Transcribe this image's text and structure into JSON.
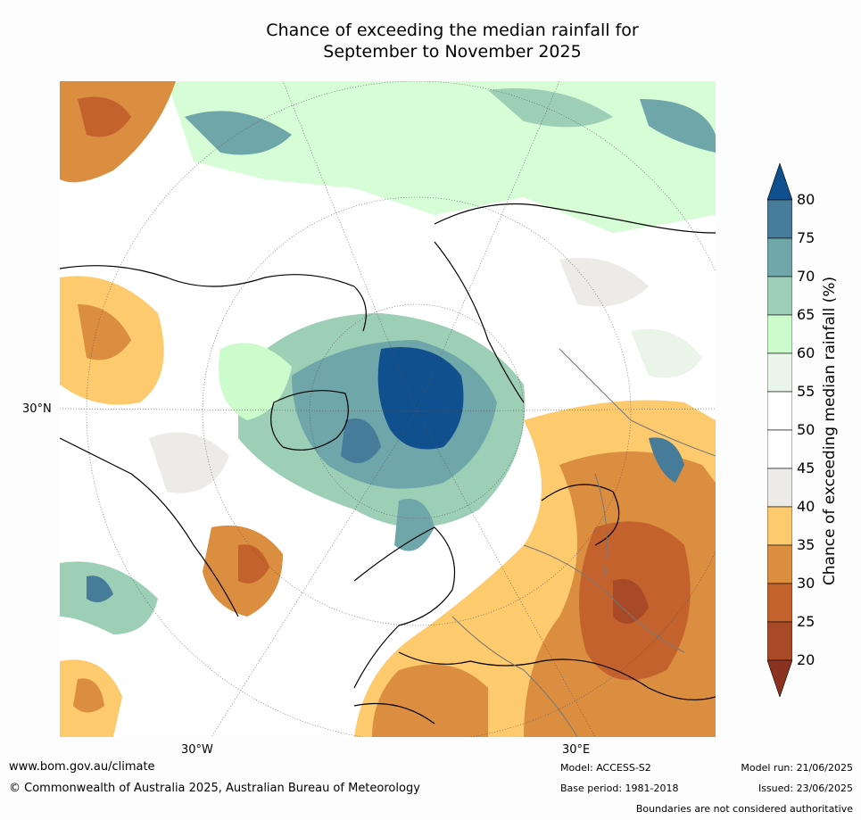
{
  "title_line1": "Chance of exceeding the median rainfall for",
  "title_line2": "September to November 2025",
  "map": {
    "lat_label": "30°N",
    "lon_labels": [
      "30°W",
      "30°E"
    ]
  },
  "colorbar": {
    "label": "Chance of exceeding median rainfall (%)",
    "ticks": [
      "80",
      "75",
      "70",
      "65",
      "60",
      "55",
      "50",
      "45",
      "40",
      "35",
      "30",
      "25",
      "20"
    ],
    "colors": [
      "#11508f",
      "#467b99",
      "#6fa6aa",
      "#9dcfb7",
      "#ccfccc",
      "#e8f5e8",
      "#ffffff",
      "#ffffff",
      "#ecebe7",
      "#fdca6d",
      "#db8d40",
      "#c4622d",
      "#a84a28",
      "#8b3320"
    ]
  },
  "footer": {
    "url": "www.bom.gov.au/climate",
    "copyright": "© Commonwealth of Australia 2025, Australian Bureau of Meteorology",
    "model": "Model: ACCESS-S2",
    "base_period": "Base period: 1981-2018",
    "model_run": "Model run: 21/06/2025",
    "issued": "Issued: 23/06/2025",
    "disclaimer": "Boundaries are not considered authoritative"
  }
}
